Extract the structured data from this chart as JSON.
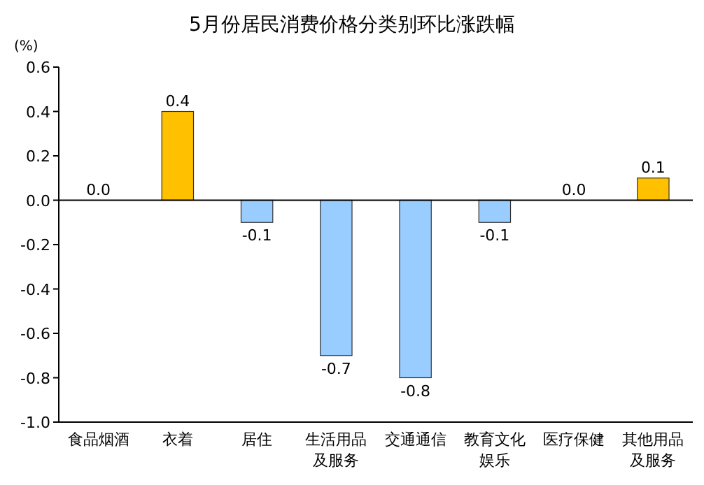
{
  "chart_data": {
    "type": "bar",
    "title": "5月份居民消费价格分类别环比涨跌幅",
    "ylabel": "(%)",
    "categories": [
      "食品烟酒",
      "衣着",
      "居住",
      "生活用品及服务",
      "交通通信",
      "教育文化娱乐",
      "医疗保健",
      "其他用品及服务"
    ],
    "values": [
      0.0,
      0.4,
      -0.1,
      -0.7,
      -0.8,
      -0.1,
      0.0,
      0.1
    ],
    "colors": [
      "#ffc000",
      "#ffc000",
      "#99ccff",
      "#99ccff",
      "#99ccff",
      "#99ccff",
      "#ffc000",
      "#ffc000"
    ],
    "value_labels": [
      "0.0",
      "0.4",
      "-0.1",
      "-0.7",
      "-0.8",
      "-0.1",
      "0.0",
      "0.1"
    ],
    "ylim": [
      -1.0,
      0.6
    ],
    "yticks": [
      {
        "value": -1.0,
        "label": "-1.0"
      },
      {
        "value": -0.8,
        "label": "-0.8"
      },
      {
        "value": -0.6,
        "label": "-0.6"
      },
      {
        "value": -0.4,
        "label": "-0.4"
      },
      {
        "value": -0.2,
        "label": "-0.2"
      },
      {
        "value": 0,
        "label": "0.0"
      },
      {
        "value": 0.2,
        "label": "0.2"
      },
      {
        "value": 0.4,
        "label": "0.4"
      },
      {
        "value": 0.6,
        "label": "0.6"
      }
    ],
    "ref_lines": [
      {
        "axis": "y",
        "value": 0,
        "color": "#000000"
      }
    ]
  }
}
